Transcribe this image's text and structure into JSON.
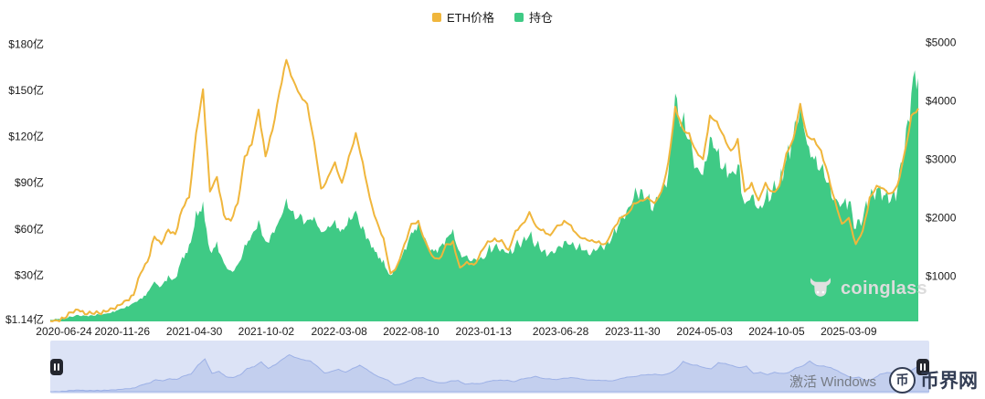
{
  "watermarks": {
    "coinglass": "coinglass",
    "activate_windows": "激活 Windows",
    "site_logo_char": "币",
    "site_logo_text": "币界网"
  },
  "chart_data": {
    "type": "line+area",
    "x_axis": {
      "start": "2020-06-24",
      "end": "2025-08",
      "tick_labels": [
        "2020-06-24",
        "2020-11-26",
        "2021-04-30",
        "2021-10-02",
        "2022-03-08",
        "2022-08-10",
        "2023-01-13",
        "2023-06-28",
        "2023-11-30",
        "2024-05-03",
        "2024-10-05",
        "2025-03-09"
      ],
      "tick_pos": [
        0,
        0.0829,
        0.1659,
        0.2488,
        0.3328,
        0.4157,
        0.4992,
        0.588,
        0.6709,
        0.7538,
        0.8368,
        0.9198
      ]
    },
    "left_axis": {
      "title": "持仓 (亿美元)",
      "tick_labels": [
        "$1.14亿",
        "$30亿",
        "$60亿",
        "$90亿",
        "$120亿",
        "$150亿",
        "$180亿"
      ],
      "tick_values": [
        1.14,
        30,
        60,
        90,
        120,
        150,
        180
      ],
      "min": 0,
      "max": 185
    },
    "right_axis": {
      "title": "ETH价格 (USD)",
      "tick_labels": [
        "$1000",
        "$2000",
        "$3000",
        "$4000",
        "$5000"
      ],
      "tick_values": [
        1000,
        2000,
        3000,
        4000,
        5000
      ],
      "min": 230,
      "max": 5100
    },
    "series": [
      {
        "name": "ETH价格",
        "type": "line",
        "axis": "right",
        "color": "#F0B63C",
        "values": [
          235,
          245,
          280,
          385,
          430,
          350,
          365,
          370,
          395,
          450,
          510,
          590,
          680,
          1050,
          1250,
          1680,
          1550,
          1800,
          1720,
          2150,
          2350,
          3450,
          4200,
          2450,
          2700,
          2050,
          1950,
          2250,
          3050,
          3250,
          3850,
          3050,
          3500,
          4150,
          4700,
          4350,
          4100,
          3950,
          3300,
          2500,
          2700,
          2950,
          2600,
          3050,
          3450,
          2950,
          2350,
          1950,
          1650,
          1050,
          1200,
          1550,
          1900,
          1950,
          1600,
          1350,
          1300,
          1550,
          1600,
          1150,
          1250,
          1200,
          1420,
          1600,
          1650,
          1620,
          1450,
          1780,
          1900,
          2100,
          1850,
          1800,
          1700,
          1870,
          1950,
          1870,
          1700,
          1650,
          1620,
          1600,
          1560,
          1800,
          2000,
          2060,
          2250,
          2300,
          2350,
          2250,
          2450,
          2950,
          3900,
          3550,
          3450,
          3150,
          3000,
          3750,
          3650,
          3400,
          3150,
          3350,
          2450,
          2600,
          2300,
          2600,
          2450,
          2550,
          3100,
          3350,
          3950,
          3400,
          3350,
          3150,
          2750,
          2300,
          1900,
          2000,
          1550,
          1780,
          2350,
          2550,
          2500,
          2420,
          2560,
          3100,
          3750,
          3870
        ]
      },
      {
        "name": "持仓",
        "type": "area",
        "axis": "left",
        "color": "#3FCA85",
        "values": [
          1.14,
          1.5,
          2,
          3,
          4.2,
          3.6,
          4,
          4.5,
          5,
          6.5,
          8,
          10,
          12,
          15,
          19,
          26,
          23,
          30,
          28,
          42,
          50,
          72,
          78,
          46,
          52,
          38,
          33,
          37,
          50,
          56,
          66,
          52,
          58,
          66,
          80,
          72,
          70,
          66,
          68,
          58,
          62,
          66,
          60,
          68,
          72,
          62,
          52,
          45,
          40,
          30,
          38,
          47,
          58,
          64,
          54,
          47,
          48,
          54,
          60,
          45,
          43,
          41,
          42,
          46,
          49,
          47,
          44,
          50,
          52,
          56,
          50,
          46,
          45,
          48,
          52,
          50,
          48,
          46,
          45,
          48,
          50,
          56,
          64,
          72,
          80,
          86,
          80,
          76,
          86,
          96,
          148,
          130,
          118,
          100,
          95,
          120,
          110,
          100,
          96,
          102,
          76,
          82,
          73,
          80,
          85,
          90,
          105,
          120,
          138,
          115,
          105,
          100,
          90,
          80,
          76,
          78,
          60,
          66,
          80,
          86,
          82,
          78,
          86,
          110,
          148,
          158
        ]
      }
    ],
    "navigator": {
      "based_on": "ETH价格",
      "band_color": "#dce3f6",
      "fill_color": "#c3cfee",
      "line_color": "#9db1e6"
    }
  }
}
